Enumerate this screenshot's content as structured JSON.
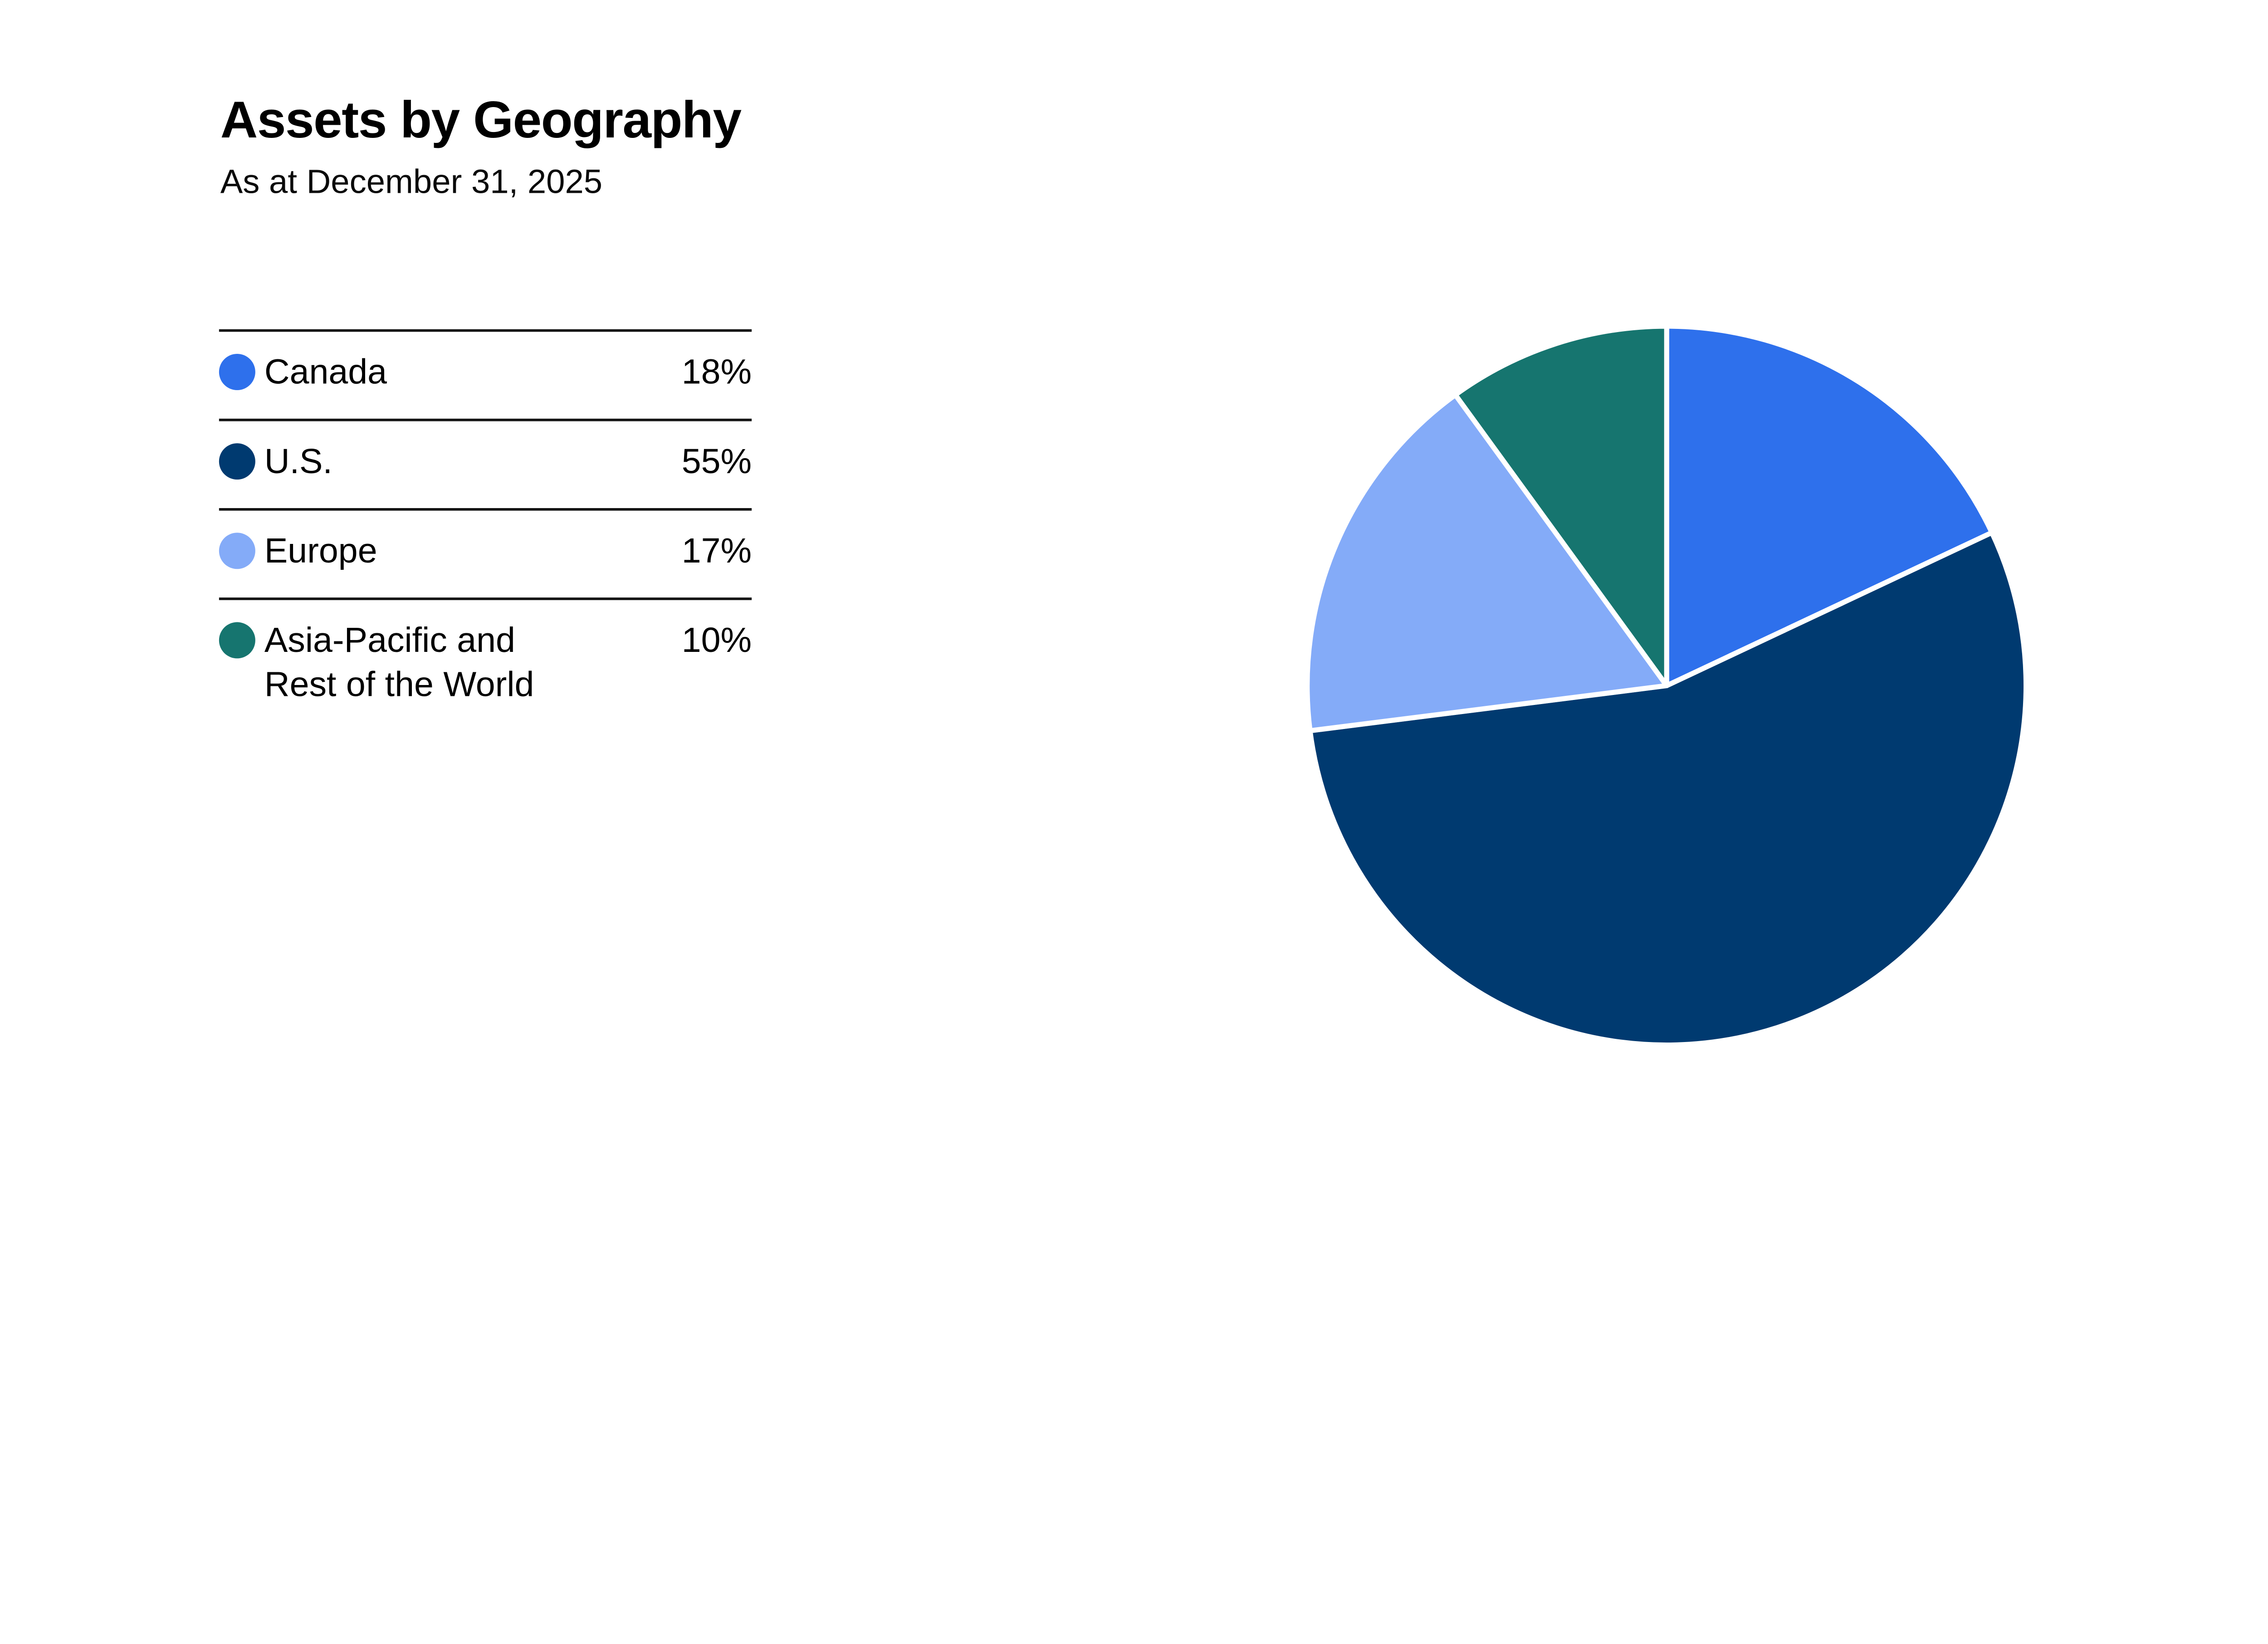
{
  "header": {
    "title": "Assets by Geography",
    "subtitle": "As at December 31, 2025"
  },
  "legend": {
    "items": [
      {
        "label": "Canada",
        "value": "18%"
      },
      {
        "label": "U.S.",
        "value": "55%"
      },
      {
        "label": "Europe",
        "value": "17%"
      },
      {
        "label": "Asia-Pacific and Rest of the World",
        "value": "10%"
      }
    ],
    "separator_color": "#151515"
  },
  "chart_data": {
    "type": "pie",
    "title": "Assets by Geography",
    "subtitle": "As at December 31, 2025",
    "categories": [
      "Canada",
      "U.S.",
      "Europe",
      "Asia-Pacific and Rest of the World"
    ],
    "values": [
      18,
      55,
      17,
      10
    ],
    "unit": "%",
    "labels": [
      "18%",
      "55%",
      "17%",
      "10%"
    ],
    "colors": [
      "#2E70EC",
      "#003A70",
      "#84ABF8",
      "#16756F"
    ],
    "start_angle_deg": 0,
    "direction": "clockwise",
    "slice_gap_color": "#FFFFFF",
    "legend_position": "left",
    "total": 100
  }
}
